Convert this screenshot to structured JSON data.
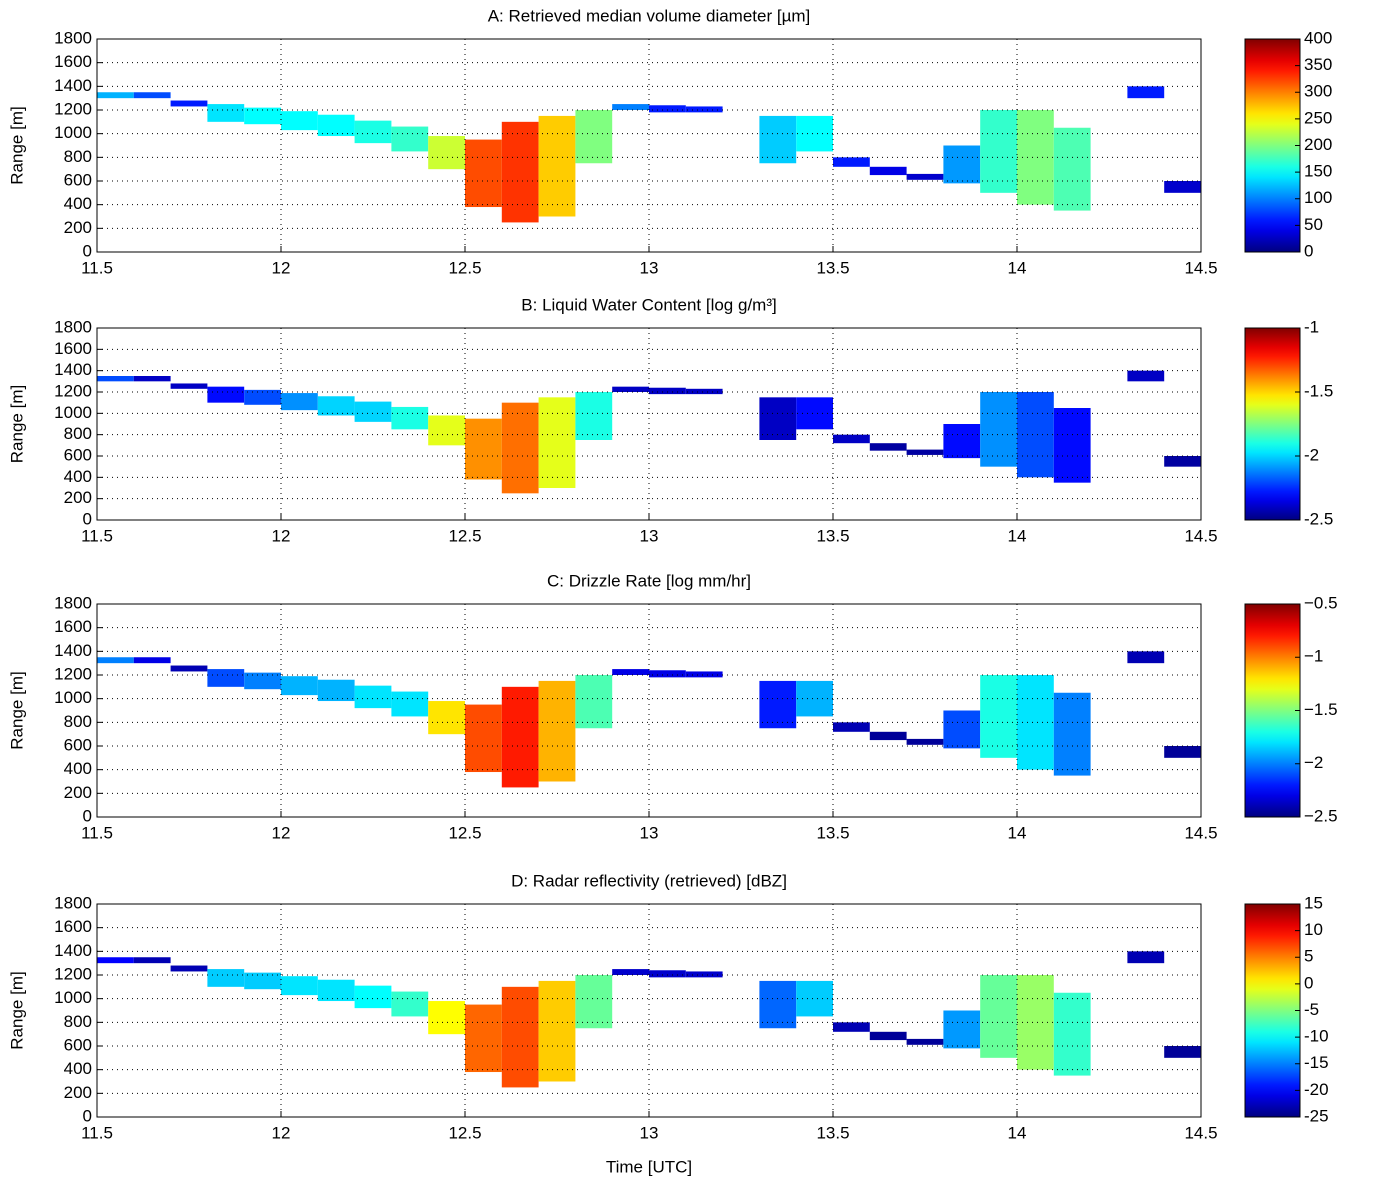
{
  "chart_data": [
    {
      "type": "heatmap",
      "title": "A: Retrieved median volume diameter [µm]",
      "ylabel": "Range [m]",
      "x": [
        11.55,
        11.65,
        11.75,
        11.85,
        11.95,
        12.05,
        12.15,
        12.25,
        12.35,
        12.45,
        12.55,
        12.65,
        12.75,
        12.85,
        12.95,
        13.05,
        13.15,
        13.25,
        13.35,
        13.45,
        13.55,
        13.65,
        13.75,
        13.85,
        13.95,
        14.05,
        14.15,
        14.25,
        14.35,
        14.45
      ],
      "base": [
        1300,
        1300,
        1230,
        1100,
        1080,
        1030,
        980,
        920,
        850,
        700,
        380,
        250,
        300,
        750,
        1200,
        1180,
        1180,
        null,
        750,
        850,
        720,
        650,
        610,
        580,
        500,
        400,
        350,
        null,
        1300,
        500
      ],
      "top": [
        1350,
        1350,
        1280,
        1250,
        1220,
        1190,
        1160,
        1110,
        1060,
        980,
        950,
        1100,
        1150,
        1200,
        1250,
        1240,
        1230,
        null,
        1150,
        1150,
        800,
        720,
        660,
        900,
        1200,
        1200,
        1050,
        null,
        1400,
        600
      ],
      "values": [
        120,
        80,
        60,
        140,
        150,
        150,
        150,
        160,
        170,
        230,
        320,
        330,
        270,
        200,
        100,
        60,
        60,
        null,
        130,
        150,
        60,
        40,
        30,
        110,
        170,
        200,
        180,
        null,
        60,
        30
      ],
      "xlim": [
        11.5,
        14.5
      ],
      "ylim": [
        0,
        1800
      ],
      "xticks": [
        11.5,
        12,
        12.5,
        13,
        13.5,
        14,
        14.5
      ],
      "yticks": [
        0,
        200,
        400,
        600,
        800,
        1000,
        1200,
        1400,
        1600,
        1800
      ],
      "clim": [
        0,
        400
      ],
      "cticks": [
        0,
        50,
        100,
        150,
        200,
        250,
        300,
        350,
        400
      ],
      "colormap": "jet",
      "grid": true
    },
    {
      "type": "heatmap",
      "title": "B: Liquid Water Content [log g/m³]",
      "ylabel": "Range [m]",
      "x": [
        11.55,
        11.65,
        11.75,
        11.85,
        11.95,
        12.05,
        12.15,
        12.25,
        12.35,
        12.45,
        12.55,
        12.65,
        12.75,
        12.85,
        12.95,
        13.05,
        13.15,
        13.25,
        13.35,
        13.45,
        13.55,
        13.65,
        13.75,
        13.85,
        13.95,
        14.05,
        14.15,
        14.25,
        14.35,
        14.45
      ],
      "base": [
        1300,
        1300,
        1230,
        1100,
        1080,
        1030,
        980,
        920,
        850,
        700,
        380,
        250,
        300,
        750,
        1200,
        1180,
        1180,
        null,
        750,
        850,
        720,
        650,
        610,
        580,
        500,
        400,
        350,
        null,
        1300,
        500
      ],
      "top": [
        1350,
        1350,
        1280,
        1250,
        1220,
        1190,
        1160,
        1110,
        1060,
        980,
        950,
        1100,
        1150,
        1200,
        1250,
        1240,
        1230,
        null,
        1150,
        1150,
        800,
        720,
        660,
        900,
        1200,
        1200,
        1050,
        null,
        1400,
        600
      ],
      "values": [
        -2.2,
        -2.4,
        -2.4,
        -2.3,
        -2.2,
        -2.1,
        -2.0,
        -2.0,
        -1.9,
        -1.6,
        -1.4,
        -1.35,
        -1.6,
        -1.9,
        -2.4,
        -2.4,
        -2.4,
        null,
        -2.4,
        -2.3,
        -2.4,
        -2.45,
        -2.45,
        -2.3,
        -2.1,
        -2.2,
        -2.3,
        null,
        -2.4,
        -2.45
      ],
      "xlim": [
        11.5,
        14.5
      ],
      "ylim": [
        0,
        1800
      ],
      "xticks": [
        11.5,
        12,
        12.5,
        13,
        13.5,
        14,
        14.5
      ],
      "yticks": [
        0,
        200,
        400,
        600,
        800,
        1000,
        1200,
        1400,
        1600,
        1800
      ],
      "clim": [
        -2.5,
        -1
      ],
      "cticks": [
        -2.5,
        -2,
        -1.5,
        -1
      ],
      "colormap": "jet",
      "grid": true
    },
    {
      "type": "heatmap",
      "title": "C: Drizzle Rate [log mm/hr]",
      "ylabel": "Range [m]",
      "x": [
        11.55,
        11.65,
        11.75,
        11.85,
        11.95,
        12.05,
        12.15,
        12.25,
        12.35,
        12.45,
        12.55,
        12.65,
        12.75,
        12.85,
        12.95,
        13.05,
        13.15,
        13.25,
        13.35,
        13.45,
        13.55,
        13.65,
        13.75,
        13.85,
        13.95,
        14.05,
        14.15,
        14.25,
        14.35,
        14.45
      ],
      "base": [
        1300,
        1300,
        1230,
        1100,
        1080,
        1030,
        980,
        920,
        850,
        700,
        380,
        250,
        300,
        750,
        1200,
        1180,
        1180,
        null,
        750,
        850,
        720,
        650,
        610,
        580,
        500,
        400,
        350,
        null,
        1300,
        500
      ],
      "top": [
        1350,
        1350,
        1280,
        1250,
        1220,
        1190,
        1160,
        1110,
        1060,
        980,
        950,
        1100,
        1150,
        1200,
        1250,
        1240,
        1230,
        null,
        1150,
        1150,
        800,
        720,
        660,
        900,
        1200,
        1200,
        1050,
        null,
        1400,
        600
      ],
      "values": [
        -2.0,
        -2.3,
        -2.4,
        -2.1,
        -2.0,
        -1.9,
        -1.9,
        -1.8,
        -1.8,
        -1.2,
        -0.9,
        -0.8,
        -1.1,
        -1.6,
        -2.3,
        -2.3,
        -2.3,
        null,
        -2.2,
        -1.9,
        -2.4,
        -2.45,
        -2.45,
        -2.1,
        -1.7,
        -1.8,
        -2.0,
        null,
        -2.4,
        -2.45
      ],
      "xlim": [
        11.5,
        14.5
      ],
      "ylim": [
        0,
        1800
      ],
      "xticks": [
        11.5,
        12,
        12.5,
        13,
        13.5,
        14,
        14.5
      ],
      "yticks": [
        0,
        200,
        400,
        600,
        800,
        1000,
        1200,
        1400,
        1600,
        1800
      ],
      "clim": [
        -2.5,
        -0.5
      ],
      "cticks": [
        {
          "value": -2.5,
          "label": "−2.5"
        },
        {
          "value": -2,
          "label": "−2"
        },
        {
          "value": -1.5,
          "label": "−1.5"
        },
        {
          "value": -1,
          "label": "−1"
        },
        {
          "value": -0.5,
          "label": "−0.5"
        }
      ],
      "colormap": "jet",
      "grid": true
    },
    {
      "type": "heatmap",
      "title": "D: Radar reflectivity (retrieved) [dBZ]",
      "ylabel": "Range [m]",
      "xlabel": "Time [UTC]",
      "x": [
        11.55,
        11.65,
        11.75,
        11.85,
        11.95,
        12.05,
        12.15,
        12.25,
        12.35,
        12.45,
        12.55,
        12.65,
        12.75,
        12.85,
        12.95,
        13.05,
        13.15,
        13.25,
        13.35,
        13.45,
        13.55,
        13.65,
        13.75,
        13.85,
        13.95,
        14.05,
        14.15,
        14.25,
        14.35,
        14.45
      ],
      "base": [
        1300,
        1300,
        1230,
        1100,
        1080,
        1030,
        980,
        920,
        850,
        700,
        380,
        250,
        300,
        750,
        1200,
        1180,
        1180,
        null,
        750,
        850,
        720,
        650,
        610,
        580,
        500,
        400,
        350,
        null,
        1300,
        500
      ],
      "top": [
        1350,
        1350,
        1280,
        1250,
        1220,
        1190,
        1160,
        1110,
        1060,
        980,
        950,
        1100,
        1150,
        1200,
        1250,
        1240,
        1230,
        null,
        1150,
        1150,
        800,
        720,
        660,
        900,
        1200,
        1200,
        1050,
        null,
        1400,
        600
      ],
      "values": [
        -20,
        -23,
        -23,
        -12,
        -12,
        -11,
        -11,
        -10,
        -8,
        0,
        6,
        7,
        2,
        -6,
        -22,
        -22,
        -22,
        null,
        -16,
        -12,
        -23,
        -24,
        -24,
        -14,
        -6,
        -4,
        -8,
        null,
        -23,
        -24
      ],
      "xlim": [
        11.5,
        14.5
      ],
      "ylim": [
        0,
        1800
      ],
      "xticks": [
        11.5,
        12,
        12.5,
        13,
        13.5,
        14,
        14.5
      ],
      "yticks": [
        0,
        200,
        400,
        600,
        800,
        1000,
        1200,
        1400,
        1600,
        1800
      ],
      "clim": [
        -25,
        15
      ],
      "cticks": [
        -25,
        -20,
        -15,
        -10,
        -5,
        0,
        5,
        10,
        15
      ],
      "colormap": "jet",
      "grid": true
    }
  ]
}
